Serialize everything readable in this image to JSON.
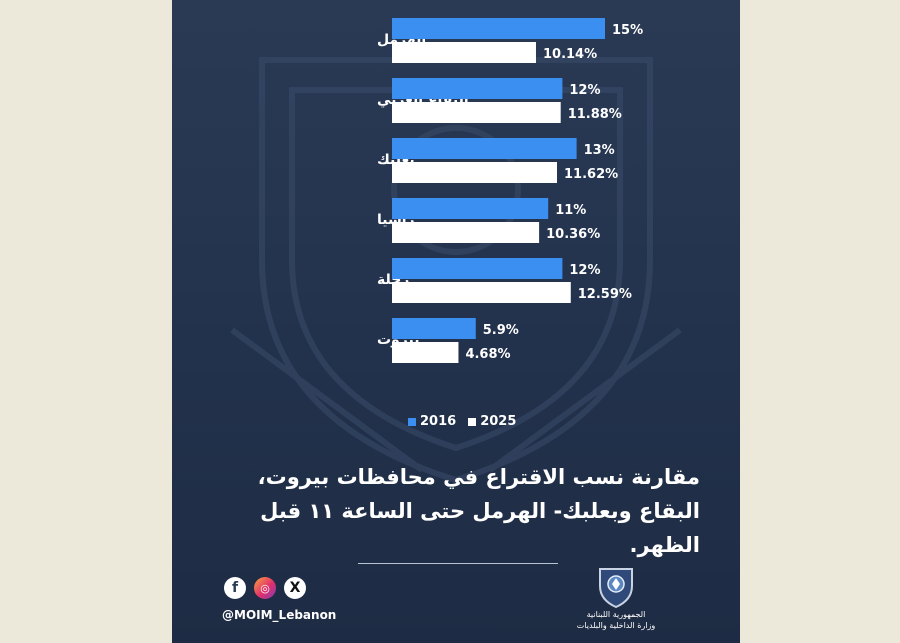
{
  "chart_data": {
    "type": "bar",
    "orientation": "horizontal",
    "categories": [
      "الهرمل",
      "البقاع الغربي",
      "بعلبك",
      "راشيا",
      "زحلة",
      "بيروت"
    ],
    "series": [
      {
        "name": "2016",
        "values": [
          15,
          12,
          13,
          11,
          12,
          5.9
        ],
        "labels": [
          "15%",
          "12%",
          "13%",
          "11%",
          "12%",
          "5.9%"
        ],
        "color": "#3b8ff0"
      },
      {
        "name": "2025",
        "values": [
          10.14,
          11.88,
          11.62,
          10.36,
          12.59,
          4.68
        ],
        "labels": [
          "10.14%",
          "11.88%",
          "11.62%",
          "10.36%",
          "12.59%",
          "4.68%"
        ],
        "color": "#ffffff"
      }
    ],
    "legend_position": "bottom",
    "grid": false
  },
  "caption": "مقارنة نسب الاقتراع في محافظات بيروت، البقاع وبعلبك- الهرمل حتى الساعة ١١ قبل الظهر.",
  "social": {
    "handle": "@MOIM_Lebanon",
    "icons": [
      "facebook-icon",
      "instagram-icon",
      "x-icon"
    ]
  },
  "ministry": {
    "line1": "الجمهورية اللبنانية",
    "line2": "وزارة الداخلية والبلديات"
  },
  "colors": {
    "background": "#ece8da",
    "card": "#22314b",
    "bar_2016": "#3b8ff0",
    "bar_2025": "#ffffff"
  }
}
